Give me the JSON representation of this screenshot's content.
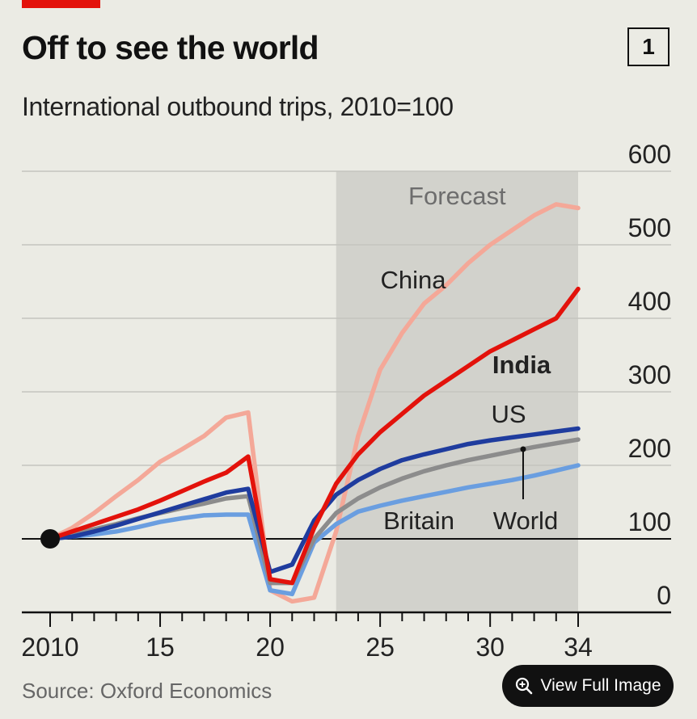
{
  "header": {
    "title": "Off to see the world",
    "subtitle": "International outbound trips, 2010=100",
    "badge": "1"
  },
  "footer": {
    "source": "Source: Oxford Economics",
    "view_button": "View Full Image"
  },
  "chart_data": {
    "type": "line",
    "title": "Off to see the world",
    "subtitle": "International outbound trips, 2010=100",
    "xlim": [
      2010,
      2034
    ],
    "ylim": [
      0,
      600
    ],
    "x_ticks": [
      2010,
      2015,
      2020,
      2025,
      2030,
      2034
    ],
    "x_tick_labels": [
      "2010",
      "15",
      "20",
      "25",
      "30",
      "34"
    ],
    "y_ticks": [
      0,
      100,
      200,
      300,
      400,
      500,
      600
    ],
    "grid": true,
    "forecast": {
      "start": 2023,
      "end": 2034,
      "label": "Forecast"
    },
    "baseline": 100,
    "x": [
      2010,
      2011,
      2012,
      2013,
      2014,
      2015,
      2016,
      2017,
      2018,
      2019,
      2020,
      2021,
      2022,
      2023,
      2024,
      2025,
      2026,
      2027,
      2028,
      2029,
      2030,
      2031,
      2032,
      2033,
      2034
    ],
    "series": [
      {
        "name": "China",
        "color": "#f4a898",
        "values": [
          100,
          115,
          135,
          158,
          180,
          205,
          222,
          240,
          265,
          272,
          30,
          15,
          20,
          110,
          240,
          330,
          380,
          420,
          445,
          475,
          500,
          520,
          540,
          555,
          550
        ]
      },
      {
        "name": "India",
        "color": "#e3120b",
        "values": [
          100,
          110,
          120,
          130,
          140,
          152,
          165,
          178,
          190,
          212,
          45,
          40,
          115,
          175,
          215,
          245,
          270,
          295,
          315,
          335,
          355,
          370,
          385,
          400,
          440
        ]
      },
      {
        "name": "US",
        "color": "#1f3c9e",
        "values": [
          100,
          103,
          110,
          118,
          127,
          136,
          145,
          154,
          163,
          168,
          55,
          65,
          125,
          160,
          180,
          195,
          207,
          215,
          222,
          229,
          234,
          238,
          242,
          246,
          250
        ]
      },
      {
        "name": "World",
        "color": "#8c8c8c",
        "values": [
          100,
          106,
          113,
          120,
          128,
          135,
          142,
          148,
          155,
          158,
          40,
          40,
          100,
          135,
          155,
          170,
          182,
          192,
          200,
          207,
          213,
          219,
          225,
          230,
          235
        ]
      },
      {
        "name": "Britain",
        "color": "#6a9ee0",
        "values": [
          100,
          103,
          106,
          110,
          116,
          123,
          128,
          132,
          133,
          133,
          30,
          25,
          95,
          120,
          137,
          145,
          152,
          158,
          164,
          170,
          175,
          180,
          186,
          193,
          200
        ]
      }
    ],
    "annotations": [
      {
        "series": "China",
        "text": "China"
      },
      {
        "series": "India",
        "text": "India"
      },
      {
        "series": "US",
        "text": "US"
      },
      {
        "series": "Britain",
        "text": "Britain"
      },
      {
        "series": "World",
        "text": "World"
      }
    ]
  }
}
